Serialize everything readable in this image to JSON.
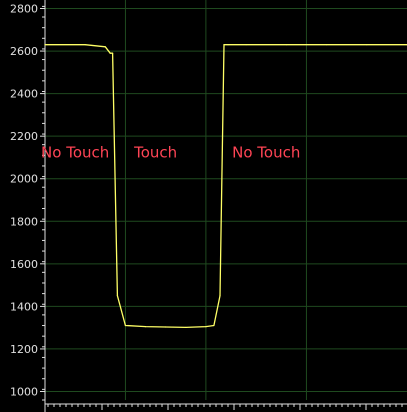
{
  "chart_data": {
    "type": "line",
    "title": "",
    "xlabel": "",
    "ylabel": "",
    "ylim": [
      960,
      2840
    ],
    "yticks": [
      1000,
      1200,
      1400,
      1600,
      1800,
      2000,
      2200,
      2400,
      2600,
      2800
    ],
    "grid": true,
    "x": [
      0,
      1.0,
      1.5,
      1.62,
      1.68,
      1.8,
      2.0,
      2.5,
      3.0,
      3.5,
      4.0,
      4.2,
      4.35,
      4.45,
      4.55,
      5.0,
      6.0,
      7.0,
      8.0,
      9.0
    ],
    "series": [
      {
        "values": [
          2630,
          2630,
          2620,
          2590,
          2590,
          1450,
          1310,
          1305,
          1303,
          1301,
          1305,
          1310,
          1450,
          2630,
          2630,
          2630,
          2630,
          2630,
          2630,
          2630
        ]
      }
    ],
    "annotations": [
      {
        "text": "No Touch",
        "x": 0.75,
        "y": 2100
      },
      {
        "text": "Touch",
        "x": 2.75,
        "y": 2100
      },
      {
        "text": "No Touch",
        "x": 5.5,
        "y": 2100
      }
    ]
  },
  "colors": {
    "background": "#000000",
    "line": "#ffff66",
    "grid": "#1f4a1f",
    "axis": "#e0e0e0",
    "annotation": "#ff4455"
  }
}
